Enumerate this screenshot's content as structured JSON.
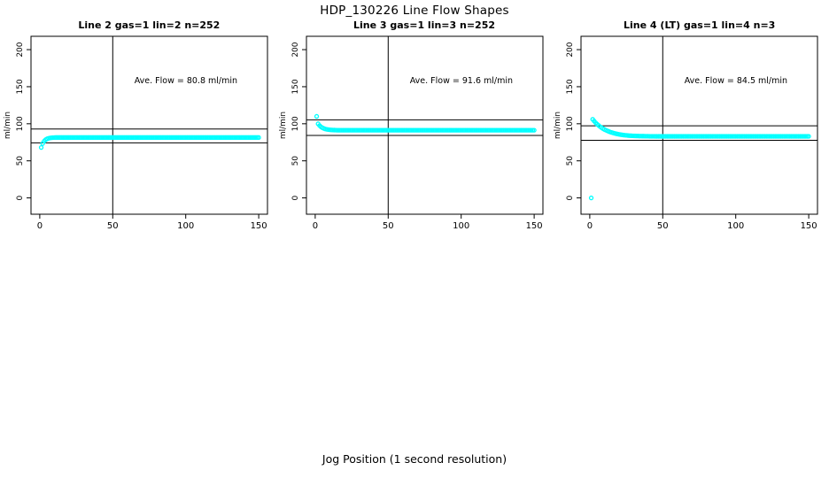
{
  "page": {
    "main_title": "HDP_130226  Line Flow Shapes",
    "x_axis_label": "Jog Position (1 second resolution)"
  },
  "chart_data": {
    "type": "scatter",
    "title": "HDP_130226  Line Flow Shapes",
    "xlabel": "Jog Position (1 second resolution)",
    "ylabel": "ml/min",
    "x_ticks": [
      0,
      50,
      100,
      150
    ],
    "y_ticks": [
      0,
      50,
      100,
      150,
      200
    ],
    "x_range": [
      -6,
      156
    ],
    "y_range": [
      -22,
      218
    ],
    "grid": false,
    "legend": "none",
    "point_color": "#00FFFF",
    "line_color": "#000000",
    "annotation_y_value": 155,
    "panels": [
      {
        "title": "Line 2 gas=1 lin=2 n=252",
        "annotation": "Ave. Flow =  80.8  ml/min",
        "ave_flow_ml_min": 80.8,
        "n": 252,
        "gas": 1,
        "lin": 2,
        "vline_x": 50,
        "ref_lines": [
          92.9,
          74.3
        ],
        "points_head": [
          [
            1,
            68
          ],
          [
            2,
            73.3
          ],
          [
            3,
            76.5
          ],
          [
            4,
            78.5
          ],
          [
            5,
            79.7
          ],
          [
            6,
            80.4
          ],
          [
            7,
            80.8
          ],
          [
            8,
            81.1
          ],
          [
            9,
            81.3
          ],
          [
            10,
            81.4
          ]
        ],
        "plateau": {
          "x_from": 11,
          "x_to": 150,
          "step": 1,
          "y": 81.5
        }
      },
      {
        "title": "Line 3 gas=1 lin=3 n=252",
        "annotation": "Ave. Flow =  91.6  ml/min",
        "ave_flow_ml_min": 91.6,
        "n": 252,
        "gas": 1,
        "lin": 3,
        "vline_x": 50,
        "ref_lines": [
          105.3,
          84.3
        ],
        "points_head": [
          [
            1,
            110
          ],
          [
            2,
            100
          ],
          [
            3,
            97.5
          ],
          [
            4,
            95.7
          ],
          [
            5,
            94.5
          ],
          [
            6,
            93.6
          ],
          [
            7,
            92.9
          ],
          [
            8,
            92.5
          ],
          [
            9,
            92.2
          ],
          [
            10,
            91.9
          ],
          [
            11,
            91.7
          ],
          [
            12,
            91.6
          ],
          [
            13,
            91.5
          ],
          [
            14,
            91.4
          ]
        ],
        "plateau": {
          "x_from": 15,
          "x_to": 150,
          "step": 1,
          "y": 91.3
        }
      },
      {
        "title": "Line 4 (LT) gas=1 lin=4 n=3",
        "annotation": "Ave. Flow =  84.5  ml/min",
        "ave_flow_ml_min": 84.5,
        "n": 3,
        "gas": 1,
        "lin": 4,
        "vline_x": 50,
        "ref_lines": [
          97.2,
          77.7
        ],
        "points_head": [
          [
            1,
            0
          ],
          [
            2,
            106
          ],
          [
            3,
            103.6
          ],
          [
            4,
            101.4
          ],
          [
            5,
            99.5
          ],
          [
            6,
            97.8
          ],
          [
            7,
            96.2
          ],
          [
            8,
            94.8
          ],
          [
            9,
            93.5
          ],
          [
            10,
            92.4
          ],
          [
            11,
            91.4
          ],
          [
            12,
            90.5
          ],
          [
            13,
            89.7
          ],
          [
            14,
            88.9
          ],
          [
            15,
            88.3
          ],
          [
            16,
            87.7
          ],
          [
            17,
            87.1
          ],
          [
            18,
            86.6
          ],
          [
            19,
            86.2
          ],
          [
            20,
            85.8
          ],
          [
            21,
            85.4
          ],
          [
            22,
            85.1
          ],
          [
            23,
            84.8
          ],
          [
            24,
            84.6
          ],
          [
            25,
            84.4
          ],
          [
            26,
            84.2
          ],
          [
            27,
            84.0
          ],
          [
            28,
            83.9
          ],
          [
            29,
            83.8
          ],
          [
            30,
            83.7
          ],
          [
            31,
            83.6
          ],
          [
            32,
            83.5
          ],
          [
            33,
            83.5
          ],
          [
            34,
            83.4
          ],
          [
            35,
            83.4
          ],
          [
            36,
            83.3
          ],
          [
            37,
            83.3
          ],
          [
            38,
            83.2
          ],
          [
            39,
            83.2
          ],
          [
            40,
            83.2
          ],
          [
            41,
            83.1
          ],
          [
            42,
            83.1
          ],
          [
            43,
            83.1
          ],
          [
            44,
            83.1
          ],
          [
            45,
            83.0
          ],
          [
            46,
            83.0
          ],
          [
            47,
            83.0
          ],
          [
            48,
            83.0
          ],
          [
            49,
            83.0
          ]
        ],
        "plateau": {
          "x_from": 50,
          "x_to": 150,
          "step": 1,
          "y": 83.0
        }
      }
    ]
  }
}
